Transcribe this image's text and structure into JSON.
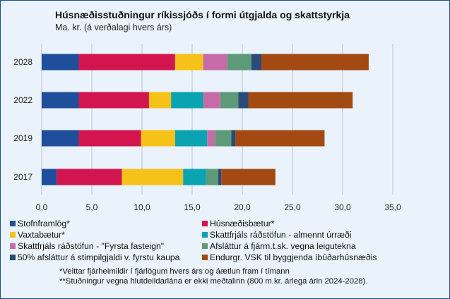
{
  "title": "Húsnæðisstuðningur ríkissjóðs í formi útgjalda og skattstyrkja",
  "subtitle": "Ma. kr. (á verðalagi hvers árs)",
  "chart_data": {
    "type": "bar",
    "orientation": "horizontal",
    "stacked": true,
    "categories": [
      "2028",
      "2022",
      "2019",
      "2017"
    ],
    "xlim": [
      0,
      35
    ],
    "xticks": [
      "0,0",
      "5,0",
      "10,0",
      "15,0",
      "20,0",
      "25,0",
      "30,0",
      "35,0"
    ],
    "xtick_values": [
      0,
      5,
      10,
      15,
      20,
      25,
      30,
      35
    ],
    "grid": "vertical",
    "legend_position": "bottom",
    "series": [
      {
        "name": "Stofnframlög*",
        "color": "#1f4e9a",
        "values": [
          3.7,
          3.7,
          3.7,
          1.5
        ]
      },
      {
        "name": "Húsnæðisbætur*",
        "color": "#d3154f",
        "values": [
          9.6,
          7.0,
          6.2,
          6.5
        ]
      },
      {
        "name": "Vaxtabætur*",
        "color": "#f6c21a",
        "values": [
          2.8,
          2.2,
          3.4,
          6.1
        ]
      },
      {
        "name": "Skattfrjáls ráðstöfun - almennt úrræði",
        "color": "#0aa3b2",
        "values": [
          0.0,
          3.2,
          3.2,
          2.3
        ]
      },
      {
        "name": "Skattfrjáls ráðstöfun - \"Fyrsta fasteign\"",
        "color": "#c76ba8",
        "values": [
          2.4,
          1.7,
          0.8,
          0.0
        ]
      },
      {
        "name": "Afsláttur á fjárm.t.sk. vegna leigutekna",
        "color": "#5d9a77",
        "values": [
          2.4,
          1.8,
          1.6,
          1.2
        ]
      },
      {
        "name": "50% afsláttur á stimpilgjaldi v. fyrstu kaupa",
        "color": "#2b4a7c",
        "values": [
          1.0,
          1.0,
          0.4,
          0.3
        ]
      },
      {
        "name": "Endurgr. VSK til byggjenda íbúðarhúsnæðis",
        "color": "#a24a12",
        "values": [
          10.7,
          10.4,
          8.9,
          5.4
        ]
      }
    ]
  },
  "notes": [
    "*Veittar fjárheimildir í fjárlögum hvers árs og áætlun fram í tímann",
    "**Stuðningur vegna hlutdeildarlána er ekki meðtalinn (800 m.kr. árlega árin 2024-2028)."
  ]
}
